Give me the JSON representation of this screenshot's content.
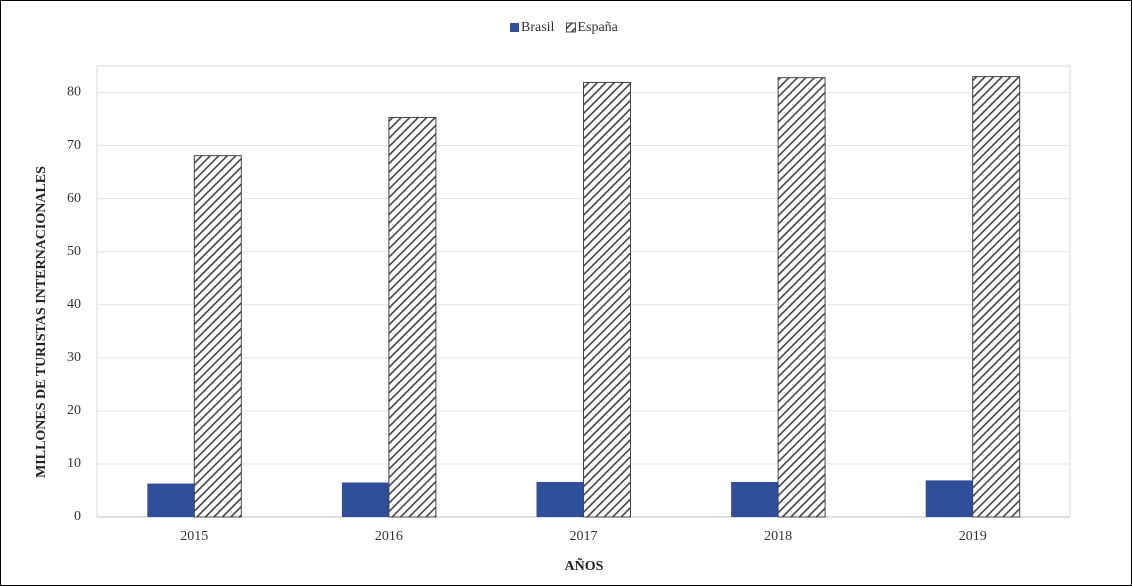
{
  "chart_data": {
    "type": "bar",
    "x_label": "AÑOS",
    "y_label": "MILLONES DE TURISTAS INTERNACIONALES",
    "categories": [
      "2015",
      "2016",
      "2017",
      "2018",
      "2019"
    ],
    "series": [
      {
        "name": "Brasil",
        "color": "#2f4f9a",
        "values": [
          6.3,
          6.5,
          6.6,
          6.6,
          6.9
        ]
      },
      {
        "name": "España",
        "color": "#444444",
        "pattern": "hatch",
        "values": [
          68.1,
          75.3,
          81.9,
          82.8,
          83.0
        ]
      }
    ],
    "ylim": [
      0,
      85
    ],
    "yticks": [
      0,
      10,
      20,
      30,
      40,
      50,
      60,
      70,
      80
    ],
    "grid": true,
    "legend": "top"
  }
}
